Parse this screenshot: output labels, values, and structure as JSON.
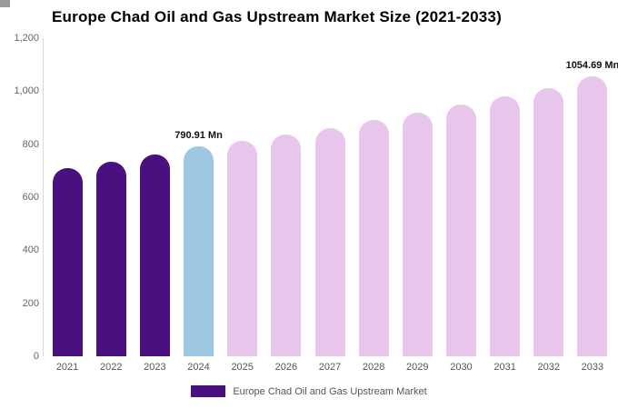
{
  "title": "Europe Chad Oil and Gas Upstream Market Size (2021-2033)",
  "legend": {
    "label": "Europe Chad Oil and Gas Upstream Market",
    "swatch_color": "#4a1080"
  },
  "colors": {
    "historical_bar": "#4a1080",
    "highlight_bar": "#9ec7e2",
    "forecast_bar": "#e9c6eb",
    "axis_text": "#666666",
    "value_label_text": "#111111"
  },
  "chart_data": {
    "type": "bar",
    "title": "Europe Chad Oil and Gas Upstream Market Size (2021-2033)",
    "categories": [
      "2021",
      "2022",
      "2023",
      "2024",
      "2025",
      "2026",
      "2027",
      "2028",
      "2029",
      "2030",
      "2031",
      "2032",
      "2033"
    ],
    "values": [
      710,
      735,
      760,
      790.91,
      812,
      838,
      862,
      892,
      920,
      950,
      982,
      1010,
      1054.69
    ],
    "bar_color_roles": [
      "historical",
      "historical",
      "historical",
      "highlight",
      "forecast",
      "forecast",
      "forecast",
      "forecast",
      "forecast",
      "forecast",
      "forecast",
      "forecast",
      "forecast"
    ],
    "annotations": [
      {
        "category": "2024",
        "text": "790.91 Mn"
      },
      {
        "category": "2033",
        "text": "1054.69 Mn"
      }
    ],
    "xlabel": "",
    "ylabel": "",
    "ylim": [
      0,
      1200
    ],
    "yticks": [
      0,
      200,
      400,
      600,
      800,
      1000,
      1200
    ],
    "ytick_labels": [
      "0",
      "200",
      "400",
      "600",
      "800",
      "1,000",
      "1,200"
    ],
    "grid": false,
    "legend_position": "bottom"
  }
}
